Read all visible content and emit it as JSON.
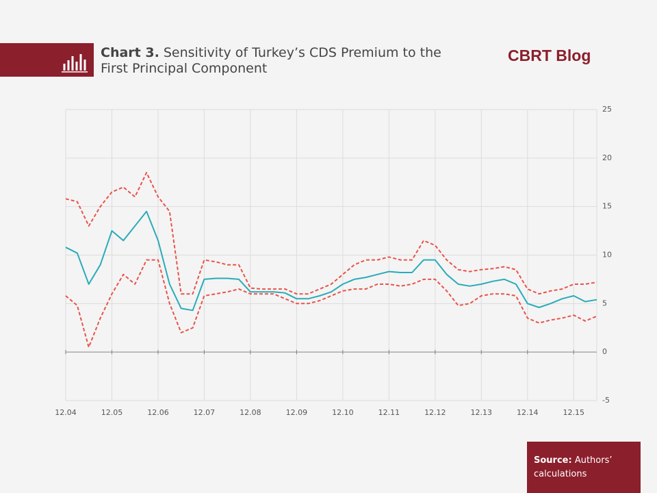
{
  "header": {
    "label": "Chart 3.",
    "title": "Sensitivity of Turkey’s CDS Premium to the First Principal Component",
    "brand": "CBRT Blog"
  },
  "source": {
    "label": "Source:",
    "text": "Authors’ calculations"
  },
  "chart_data": {
    "type": "line",
    "categories": [
      "12.04",
      null,
      null,
      null,
      "12.05",
      null,
      null,
      null,
      "12.06",
      null,
      null,
      null,
      "12.07",
      null,
      null,
      null,
      "12.08",
      null,
      null,
      null,
      "12.09",
      null,
      null,
      null,
      "12.10",
      null,
      null,
      null,
      "12.11",
      null,
      null,
      null,
      "12.12",
      null,
      null,
      null,
      "12.13",
      null,
      null,
      null,
      "12.14",
      null,
      null,
      null,
      "12.15",
      null,
      null
    ],
    "series": [
      {
        "color": "#e8534a",
        "style": "dashed",
        "values": [
          15.8,
          15.5,
          13,
          15,
          16.5,
          17,
          16,
          18.5,
          16,
          14.5,
          6,
          6,
          9.5,
          9.3,
          9,
          9,
          6.6,
          6.5,
          6.5,
          6.5,
          6,
          6,
          6.5,
          7,
          8,
          9,
          9.5,
          9.5,
          9.8,
          9.5,
          9.5,
          11.5,
          11,
          9.5,
          8.5,
          8.3,
          8.5,
          8.6,
          8.8,
          8.5,
          6.5,
          6,
          6.3,
          6.5,
          7,
          7,
          7.2
        ]
      },
      {
        "color": "#e8534a",
        "style": "dashed",
        "values": [
          5.8,
          4.8,
          0.5,
          3.5,
          6,
          8,
          7,
          9.5,
          9.5,
          5,
          2,
          2.5,
          5.8,
          6,
          6.2,
          6.5,
          6,
          6,
          6,
          5.5,
          5,
          5,
          5.3,
          5.8,
          6.3,
          6.5,
          6.5,
          7,
          7,
          6.8,
          7,
          7.5,
          7.5,
          6.3,
          4.8,
          5,
          5.8,
          6,
          6,
          5.8,
          3.5,
          3,
          3.3,
          3.5,
          3.8,
          3.2,
          3.7
        ]
      },
      {
        "color": "#2aabb8",
        "style": "solid",
        "values": [
          10.8,
          10.2,
          7,
          9,
          12.5,
          11.5,
          13,
          14.5,
          11.5,
          7,
          4.5,
          4.3,
          7.5,
          7.6,
          7.6,
          7.5,
          6.2,
          6.2,
          6.2,
          6.1,
          5.5,
          5.5,
          5.8,
          6.2,
          7,
          7.5,
          7.7,
          8,
          8.3,
          8.2,
          8.2,
          9.5,
          9.5,
          8,
          7,
          6.8,
          7,
          7.3,
          7.5,
          7,
          5,
          4.6,
          5,
          5.5,
          5.8,
          5.2,
          5.4
        ]
      }
    ],
    "ylim": [
      -5,
      25
    ],
    "yticks": [
      -5,
      0,
      5,
      10,
      15,
      20,
      25
    ],
    "grid": true,
    "y_axis_side": "right"
  }
}
